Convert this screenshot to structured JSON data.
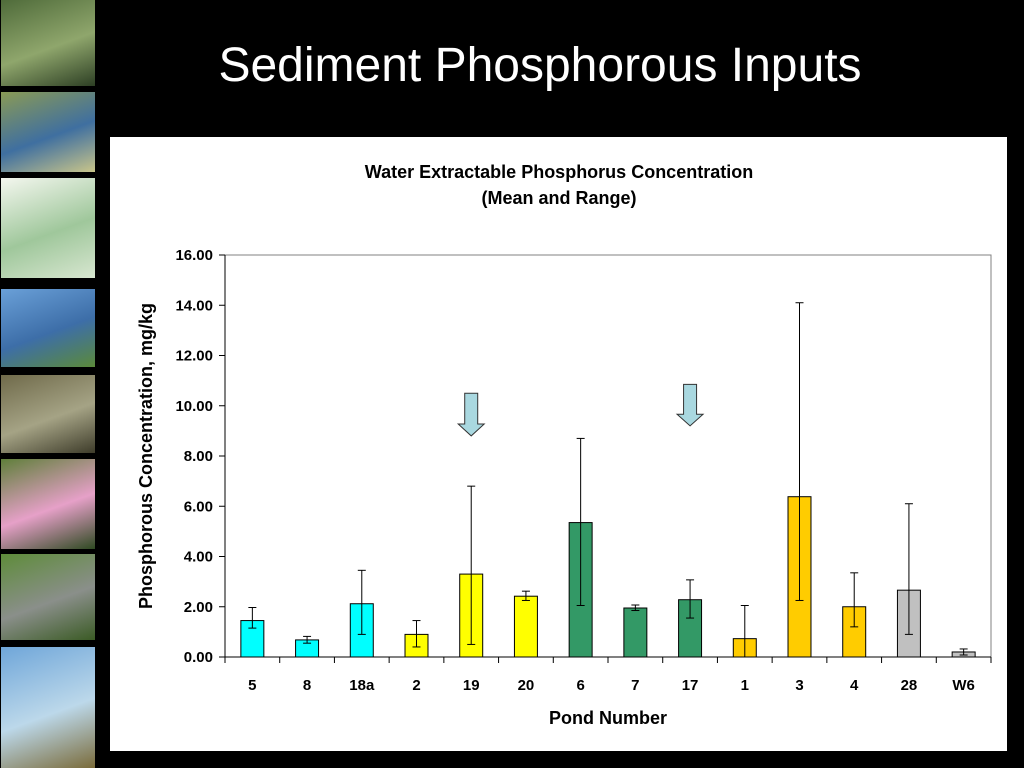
{
  "slide": {
    "title": "Sediment Phosphorous Inputs"
  },
  "sidebar": {
    "thumbnails": [
      {
        "name": "algae-water-photo",
        "colors": [
          "#4f6b3a",
          "#8fa66c",
          "#2d3f24"
        ]
      },
      {
        "name": "marsh-pond-photo",
        "colors": [
          "#8a9a55",
          "#3f6fa0",
          "#c9c58a"
        ]
      },
      {
        "name": "site-map-image",
        "colors": [
          "#f4f7ef",
          "#9fc79b",
          "#d7e6d0"
        ]
      },
      {
        "name": "blue-pond-photo",
        "colors": [
          "#6aa0d8",
          "#3d6ea8",
          "#5b8a3a"
        ]
      },
      {
        "name": "field-sampler-photo",
        "colors": [
          "#6f6a4a",
          "#a5a385",
          "#3e3c2a"
        ]
      },
      {
        "name": "water-lily-photo",
        "colors": [
          "#5f7f3a",
          "#e6a0c8",
          "#2f4a22"
        ]
      },
      {
        "name": "fish-on-grass-photo",
        "colors": [
          "#5e8c3a",
          "#8a8f8a",
          "#3b5b25"
        ]
      },
      {
        "name": "water-sample-jar-photo",
        "colors": [
          "#6fa6d9",
          "#bcd8ea",
          "#7a6b3a"
        ]
      }
    ]
  },
  "colors": {
    "cyan": "#00FFFF",
    "yellow": "#FFFF00",
    "green": "#339966",
    "gold": "#FFCC00",
    "gray": "#C0C0C0",
    "arrow": "#A9D8E0"
  },
  "chart_data": {
    "type": "bar",
    "title": "Water Extractable Phosphorus Concentration",
    "subtitle": "(Mean and Range)",
    "xlabel": "Pond Number",
    "ylabel": "Phosphorous Concentration, mg/kg",
    "ylim": [
      0,
      16
    ],
    "yticks": [
      "0.00",
      "2.00",
      "4.00",
      "6.00",
      "8.00",
      "10.00",
      "12.00",
      "14.00",
      "16.00"
    ],
    "grid": false,
    "categories": [
      "5",
      "8",
      "18a",
      "2",
      "19",
      "20",
      "6",
      "7",
      "17",
      "1",
      "3",
      "4",
      "28",
      "W6"
    ],
    "values": [
      1.45,
      0.68,
      2.12,
      0.9,
      3.3,
      2.42,
      5.35,
      1.95,
      2.28,
      0.73,
      6.38,
      2.0,
      2.66,
      0.2
    ],
    "range_low": [
      1.15,
      0.55,
      0.9,
      0.4,
      0.5,
      2.25,
      2.05,
      1.85,
      1.55,
      0.0,
      2.25,
      1.2,
      0.9,
      0.08
    ],
    "range_high": [
      1.97,
      0.82,
      3.45,
      1.45,
      6.8,
      2.62,
      8.7,
      2.07,
      3.07,
      2.05,
      14.1,
      3.35,
      6.1,
      0.32
    ],
    "bar_colors": [
      "#00FFFF",
      "#00FFFF",
      "#00FFFF",
      "#FFFF00",
      "#FFFF00",
      "#FFFF00",
      "#339966",
      "#339966",
      "#339966",
      "#FFCC00",
      "#FFCC00",
      "#FFCC00",
      "#C0C0C0",
      "#C0C0C0"
    ],
    "arrows": [
      {
        "category": "19",
        "top": 10.5,
        "bottom": 8.8
      },
      {
        "category": "17",
        "top": 10.85,
        "bottom": 9.2
      }
    ]
  }
}
